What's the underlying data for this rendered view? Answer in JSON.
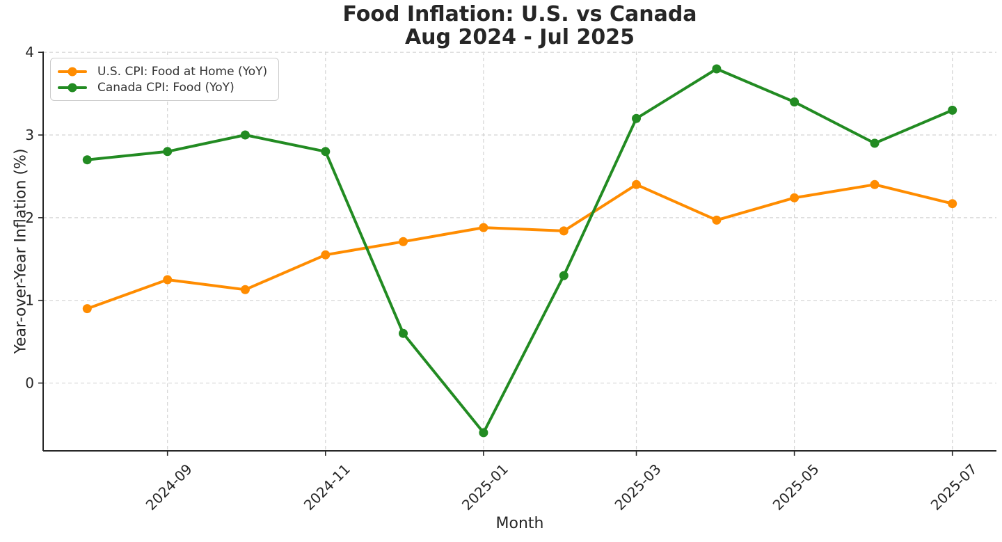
{
  "title": {
    "line1": "Food Inflation: U.S. vs Canada",
    "line2": "Aug 2024 - Jul 2025"
  },
  "chart_data": {
    "type": "line",
    "x": [
      "2024-08",
      "2024-09",
      "2024-10",
      "2024-11",
      "2024-12",
      "2025-01",
      "2025-02",
      "2025-03",
      "2025-04",
      "2025-05",
      "2025-06",
      "2025-07"
    ],
    "series": [
      {
        "name": "U.S. CPI: Food at Home (YoY)",
        "color": "#FF8C00",
        "values": [
          0.9,
          1.25,
          1.13,
          1.55,
          1.71,
          1.88,
          1.84,
          2.4,
          1.97,
          2.24,
          2.4,
          2.17
        ]
      },
      {
        "name": "Canada CPI: Food (YoY)",
        "color": "#228B22",
        "values": [
          2.7,
          2.8,
          3.0,
          2.8,
          0.6,
          -0.6,
          1.3,
          3.2,
          3.8,
          3.4,
          2.9,
          3.3
        ]
      }
    ],
    "xlabel": "Month",
    "ylabel": "Year-over-Year Inflation (%)",
    "x_ticks": [
      "2024-09",
      "2024-11",
      "2025-01",
      "2025-03",
      "2025-05",
      "2025-07"
    ],
    "y_ticks": [
      0,
      1,
      2,
      3,
      4
    ],
    "ylim": [
      -0.82,
      4.01
    ],
    "grid": true,
    "legend_position": "upper left"
  },
  "colors": {
    "grid": "#d4d4d4",
    "spine": "#262626",
    "tick_text": "#262626",
    "title_text": "#262626"
  }
}
